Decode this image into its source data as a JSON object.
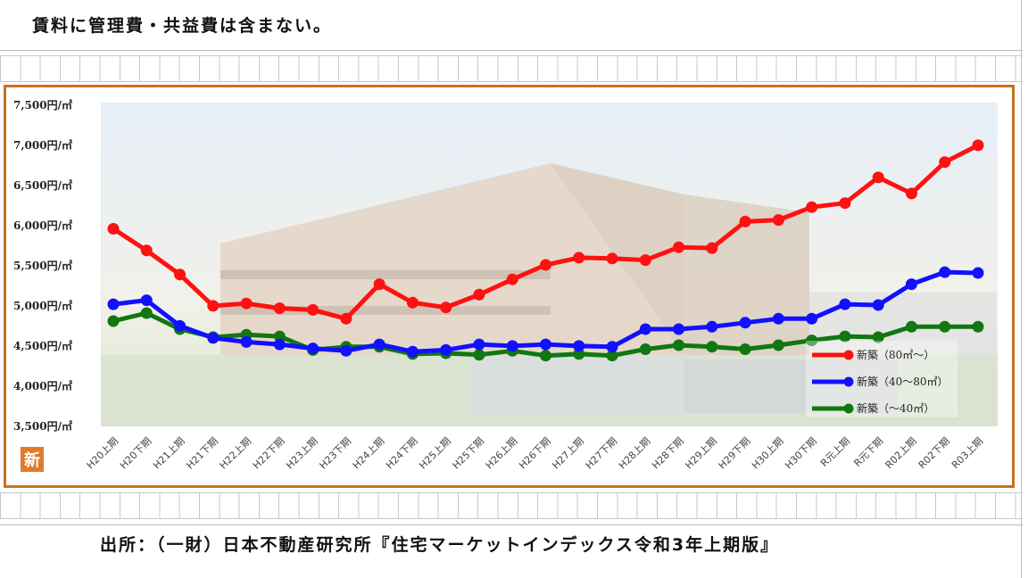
{
  "header": {
    "note": "賃料に管理費・共益費は含まない。"
  },
  "footer": {
    "source": "出所：（一財）日本不動産研究所『住宅マーケットインデックス令和3年上期版』"
  },
  "badge": {
    "label": "新"
  },
  "colors": {
    "frame": "#c8701e",
    "badge": "#e07b2c"
  },
  "chart_data": {
    "type": "line",
    "title": "",
    "xlabel": "",
    "ylabel": "",
    "ylim": [
      3500,
      7500
    ],
    "yticks": [
      {
        "v": 3500,
        "label": "3,500円/㎡"
      },
      {
        "v": 4000,
        "label": "4,000円/㎡"
      },
      {
        "v": 4500,
        "label": "4,500円/㎡"
      },
      {
        "v": 5000,
        "label": "5,000円/㎡"
      },
      {
        "v": 5500,
        "label": "5,500円/㎡"
      },
      {
        "v": 6000,
        "label": "6,000円/㎡"
      },
      {
        "v": 6500,
        "label": "6,500円/㎡"
      },
      {
        "v": 7000,
        "label": "7,000円/㎡"
      },
      {
        "v": 7500,
        "label": "7,500円/㎡"
      }
    ],
    "categories": [
      "H20上期",
      "H20下期",
      "H21上期",
      "H21下期",
      "H22上期",
      "H22下期",
      "H23上期",
      "H23下期",
      "H24上期",
      "H24下期",
      "H25上期",
      "H25下期",
      "H26上期",
      "H26下期",
      "H27上期",
      "H27下期",
      "H28上期",
      "H28下期",
      "H29上期",
      "H29下期",
      "H30上期",
      "H30下期",
      "R元上期",
      "R元下期",
      "R02上期",
      "R02下期",
      "R03上期"
    ],
    "legend_position": "bottom-right",
    "grid": false,
    "series": [
      {
        "name": "新築（80㎡～）",
        "color": "#ff1111",
        "values": [
          5950,
          5680,
          5380,
          4990,
          5020,
          4960,
          4940,
          4830,
          5260,
          5030,
          4970,
          5130,
          5320,
          5500,
          5590,
          5580,
          5560,
          5720,
          5710,
          6040,
          6060,
          6220,
          6270,
          6590,
          6390,
          6780,
          6990
        ]
      },
      {
        "name": "新築（40～80㎡）",
        "color": "#1111ff",
        "values": [
          5010,
          5060,
          4740,
          4590,
          4540,
          4510,
          4460,
          4430,
          4510,
          4420,
          4440,
          4510,
          4490,
          4510,
          4490,
          4480,
          4700,
          4700,
          4730,
          4780,
          4830,
          4830,
          5010,
          5000,
          5260,
          5410,
          5400
        ]
      },
      {
        "name": "新築（～40㎡）",
        "color": "#117711",
        "values": [
          4800,
          4900,
          4700,
          4600,
          4630,
          4610,
          4440,
          4480,
          4480,
          4390,
          4400,
          4380,
          4430,
          4370,
          4390,
          4370,
          4450,
          4500,
          4480,
          4450,
          4500,
          4560,
          4610,
          4600,
          4730,
          4730,
          4730
        ]
      }
    ]
  }
}
